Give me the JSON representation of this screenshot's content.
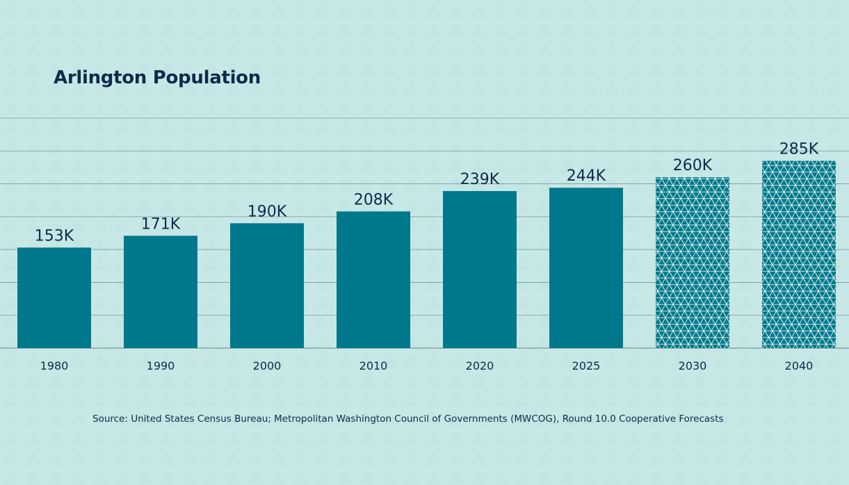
{
  "chart_data": {
    "type": "bar",
    "title": "Arlington Population",
    "categories": [
      "1980",
      "1990",
      "2000",
      "2010",
      "2020",
      "2025",
      "2030",
      "2040"
    ],
    "values": [
      153000,
      171000,
      190000,
      208000,
      239000,
      244000,
      260000,
      285000
    ],
    "value_labels": [
      "153K",
      "171K",
      "190K",
      "208K",
      "239K",
      "244K",
      "260K",
      "285K"
    ],
    "projected": [
      false,
      false,
      false,
      false,
      false,
      false,
      true,
      true
    ],
    "ylim": [
      0,
      350000
    ],
    "grid": true,
    "xlabel": "",
    "ylabel": "",
    "source": "Source: United States Census Bureau; Metropolitan Washington Council of Governments (MWCOG), Round 10.0 Cooperative Forecasts"
  },
  "colors": {
    "bar": "#00788c",
    "projected_bar": "#00788c",
    "pattern_line": "#e3f4f2",
    "text": "#0f2a4a",
    "background": "#c7e8e6",
    "grid": "#5f7f80"
  }
}
